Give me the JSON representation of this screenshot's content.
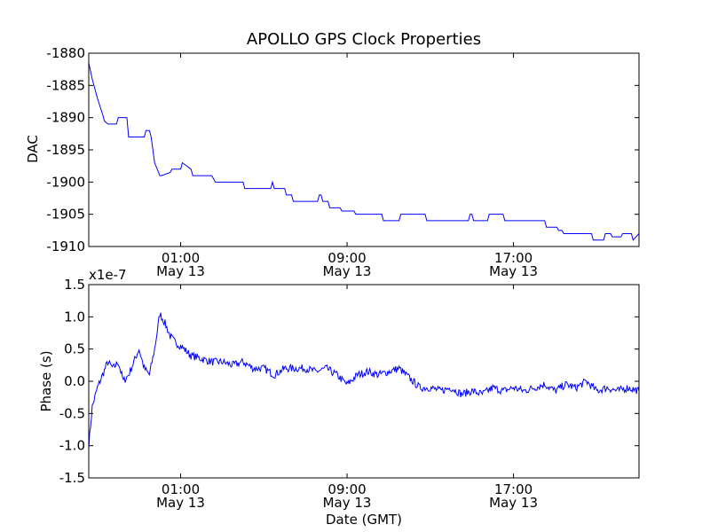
{
  "chart_data": [
    {
      "type": "line",
      "title": "APOLLO GPS Clock Properties",
      "xlabel": "",
      "ylabel": "DAC",
      "xlim": [
        "2013-05-12T20:35",
        "2013-05-13T23:02"
      ],
      "ylim": [
        -1910,
        -1880
      ],
      "yticks": [
        -1880,
        -1885,
        -1890,
        -1895,
        -1900,
        -1905,
        -1910
      ],
      "xticks": [
        {
          "x": "2013-05-13T01:00",
          "time": "01:00",
          "date": "May 13"
        },
        {
          "x": "2013-05-13T09:00",
          "time": "09:00",
          "date": "May 13"
        },
        {
          "x": "2013-05-13T17:00",
          "time": "17:00",
          "date": "May 13"
        }
      ],
      "grid": false,
      "color": "#0000ff",
      "series": [
        {
          "x": [
            "2013-05-12T20:35",
            "2013-05-12T20:45",
            "2013-05-12T21:00",
            "2013-05-12T21:15",
            "2013-05-12T21:20",
            "2013-05-12T21:30",
            "2013-05-12T21:55",
            "2013-05-12T22:00",
            "2013-05-12T22:25",
            "2013-05-12T22:30",
            "2013-05-12T23:15",
            "2013-05-12T23:20",
            "2013-05-12T23:30",
            "2013-05-12T23:35",
            "2013-05-12T23:45",
            "2013-05-13T00:00",
            "2013-05-13T00:05",
            "2013-05-13T00:30",
            "2013-05-13T00:35",
            "2013-05-13T01:00",
            "2013-05-13T01:05",
            "2013-05-13T01:30",
            "2013-05-13T01:35",
            "2013-05-13T02:30",
            "2013-05-13T02:35",
            "2013-05-13T02:40",
            "2013-05-13T04:00",
            "2013-05-13T04:05",
            "2013-05-13T05:20",
            "2013-05-13T05:25",
            "2013-05-13T05:30",
            "2013-05-13T05:35",
            "2013-05-13T06:00",
            "2013-05-13T06:05",
            "2013-05-13T06:20",
            "2013-05-13T06:25",
            "2013-05-13T07:35",
            "2013-05-13T07:40",
            "2013-05-13T07:45",
            "2013-05-13T07:50",
            "2013-05-13T08:05",
            "2013-05-13T08:10",
            "2013-05-13T08:40",
            "2013-05-13T08:45",
            "2013-05-13T09:20",
            "2013-05-13T09:25",
            "2013-05-13T10:40",
            "2013-05-13T10:45",
            "2013-05-13T11:30",
            "2013-05-13T11:35",
            "2013-05-13T12:45",
            "2013-05-13T12:50",
            "2013-05-13T14:50",
            "2013-05-13T14:55",
            "2013-05-13T15:00",
            "2013-05-13T15:05",
            "2013-05-13T15:45",
            "2013-05-13T15:50",
            "2013-05-13T16:30",
            "2013-05-13T16:35",
            "2013-05-13T18:30",
            "2013-05-13T18:35",
            "2013-05-13T19:05",
            "2013-05-13T19:10",
            "2013-05-13T19:20",
            "2013-05-13T19:25",
            "2013-05-13T20:15",
            "2013-05-13T20:20",
            "2013-05-13T20:45",
            "2013-05-13T20:50",
            "2013-05-13T21:20",
            "2013-05-13T21:25",
            "2013-05-13T21:40",
            "2013-05-13T21:45",
            "2013-05-13T22:10",
            "2013-05-13T22:15",
            "2013-05-13T22:40",
            "2013-05-13T22:45",
            "2013-05-13T23:02"
          ],
          "y": [
            -1881.5,
            -1884.0,
            -1887.0,
            -1889.5,
            -1890.5,
            -1891.0,
            -1891.0,
            -1890.0,
            -1890.0,
            -1893.0,
            -1893.0,
            -1892.0,
            -1892.0,
            -1893.0,
            -1897.0,
            -1899.0,
            -1899.0,
            -1898.5,
            -1898.0,
            -1898.0,
            -1897.0,
            -1898.0,
            -1899.0,
            -1899.0,
            -1899.5,
            -1900.0,
            -1900.0,
            -1901.0,
            -1901.0,
            -1900.0,
            -1901.0,
            -1901.0,
            -1901.0,
            -1902.0,
            -1902.0,
            -1903.0,
            -1903.0,
            -1902.0,
            -1902.0,
            -1903.0,
            -1903.0,
            -1904.0,
            -1904.0,
            -1904.5,
            -1904.5,
            -1905.0,
            -1905.0,
            -1906.0,
            -1906.0,
            -1905.0,
            -1905.0,
            -1906.0,
            -1906.0,
            -1905.0,
            -1905.0,
            -1906.0,
            -1906.0,
            -1905.0,
            -1905.0,
            -1906.0,
            -1906.0,
            -1907.0,
            -1907.0,
            -1907.5,
            -1907.5,
            -1908.0,
            -1908.0,
            -1908.0,
            -1908.0,
            -1909.0,
            -1909.0,
            -1908.0,
            -1908.0,
            -1908.5,
            -1908.5,
            -1908.0,
            -1908.0,
            -1909.0,
            -1908.0
          ]
        }
      ]
    },
    {
      "type": "line",
      "title": "",
      "xlabel": "Date (GMT)",
      "ylabel": "Phase (s)",
      "offset_label": "x1e-7",
      "xlim": [
        "2013-05-12T20:35",
        "2013-05-13T23:02"
      ],
      "ylim": [
        -1.5,
        1.5
      ],
      "yticks": [
        1.5,
        1.0,
        0.5,
        0.0,
        -0.5,
        -1.0,
        -1.5
      ],
      "ytick_labels": [
        "1.5",
        "1.0",
        "0.5",
        "0.0",
        "-0.5",
        "-1.0",
        "-1.5"
      ],
      "xticks": [
        {
          "x": "2013-05-13T01:00",
          "time": "01:00",
          "date": "May 13"
        },
        {
          "x": "2013-05-13T09:00",
          "time": "09:00",
          "date": "May 13"
        },
        {
          "x": "2013-05-13T17:00",
          "time": "17:00",
          "date": "May 13"
        }
      ],
      "grid": false,
      "color": "#0000ff",
      "series": [
        {
          "x": [
            "2013-05-12T20:35",
            "2013-05-12T20:45",
            "2013-05-12T21:00",
            "2013-05-12T21:15",
            "2013-05-12T21:30",
            "2013-05-12T21:45",
            "2013-05-12T22:00",
            "2013-05-12T22:15",
            "2013-05-12T22:30",
            "2013-05-12T22:45",
            "2013-05-12T23:00",
            "2013-05-12T23:15",
            "2013-05-12T23:30",
            "2013-05-12T23:45",
            "2013-05-13T00:00",
            "2013-05-13T00:15",
            "2013-05-13T00:30",
            "2013-05-13T00:45",
            "2013-05-13T01:00",
            "2013-05-13T01:30",
            "2013-05-13T02:00",
            "2013-05-13T02:30",
            "2013-05-13T03:00",
            "2013-05-13T03:30",
            "2013-05-13T04:00",
            "2013-05-13T04:30",
            "2013-05-13T05:00",
            "2013-05-13T05:30",
            "2013-05-13T06:00",
            "2013-05-13T06:30",
            "2013-05-13T07:00",
            "2013-05-13T07:30",
            "2013-05-13T08:00",
            "2013-05-13T08:30",
            "2013-05-13T09:00",
            "2013-05-13T09:30",
            "2013-05-13T10:00",
            "2013-05-13T10:30",
            "2013-05-13T11:00",
            "2013-05-13T11:30",
            "2013-05-13T12:00",
            "2013-05-13T12:30",
            "2013-05-13T13:00",
            "2013-05-13T13:30",
            "2013-05-13T14:00",
            "2013-05-13T14:30",
            "2013-05-13T15:00",
            "2013-05-13T15:30",
            "2013-05-13T16:00",
            "2013-05-13T16:30",
            "2013-05-13T17:00",
            "2013-05-13T17:30",
            "2013-05-13T18:00",
            "2013-05-13T18:30",
            "2013-05-13T19:00",
            "2013-05-13T19:30",
            "2013-05-13T20:00",
            "2013-05-13T20:30",
            "2013-05-13T21:00",
            "2013-05-13T21:30",
            "2013-05-13T22:00",
            "2013-05-13T22:30",
            "2013-05-13T23:02"
          ],
          "y": [
            -1.0,
            -0.4,
            -0.1,
            0.1,
            0.3,
            0.2,
            0.3,
            0.0,
            0.1,
            0.3,
            0.5,
            0.2,
            0.1,
            0.5,
            1.05,
            0.9,
            0.7,
            0.6,
            0.55,
            0.4,
            0.35,
            0.3,
            0.3,
            0.25,
            0.3,
            0.2,
            0.2,
            0.1,
            0.2,
            0.2,
            0.2,
            0.15,
            0.2,
            0.1,
            -0.05,
            0.1,
            0.15,
            0.1,
            0.15,
            0.2,
            0.05,
            -0.1,
            -0.1,
            -0.15,
            -0.1,
            -0.2,
            -0.15,
            -0.2,
            -0.1,
            -0.15,
            -0.1,
            -0.15,
            -0.1,
            -0.05,
            -0.15,
            -0.05,
            -0.1,
            0.0,
            -0.15,
            -0.1,
            -0.15,
            -0.1,
            -0.15
          ]
        }
      ]
    }
  ]
}
